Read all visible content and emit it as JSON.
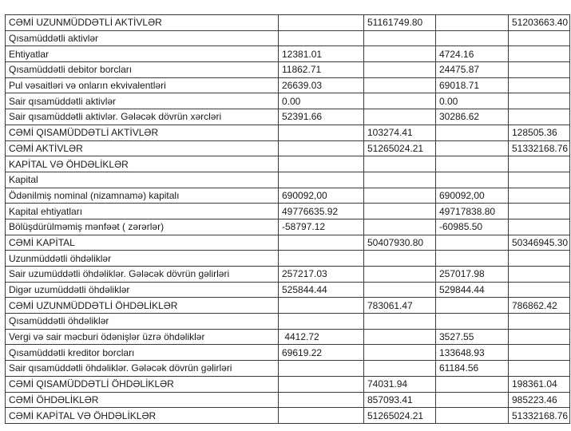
{
  "rows": [
    [
      "CƏMİ UZUNMÜDDƏTLİ AKTİVLƏR",
      "",
      "51161749.80",
      "",
      "51203663.40"
    ],
    [
      "Qısamüddətli aktivlər",
      "",
      "",
      "",
      ""
    ],
    [
      "Ehtiyatlar",
      "12381.01",
      "",
      "4724.16",
      ""
    ],
    [
      "Qısamüddətli debitor borcları",
      "11862.71",
      "",
      "24475.87",
      ""
    ],
    [
      "Pul vəsaitləri və onların ekvivalentləri",
      "26639.03",
      "",
      "69018.71",
      ""
    ],
    [
      "Sair qısamüddətli aktivlər",
      "0.00",
      "",
      "0.00",
      ""
    ],
    [
      "Sair qısamüddətli aktivlər. Gələcək dövrün xərcləri",
      "52391.66",
      "",
      "30286.62",
      ""
    ],
    [
      "CƏMİ QISAMÜDDƏTLİ AKTİVLƏR",
      "",
      "103274.41",
      "",
      "128505.36"
    ],
    [
      "CƏMİ AKTİVLƏR",
      "",
      "51265024.21",
      "",
      "51332168.76"
    ],
    [
      "KAPİTAL VƏ ÖHDƏLİKLƏR",
      "",
      "",
      "",
      ""
    ],
    [
      "Kapital",
      "",
      "",
      "",
      ""
    ],
    [
      "Ödənilmiş nominal (nizamnamə) kapitalı",
      "690092,00",
      "",
      "690092,00",
      ""
    ],
    [
      "Kapital ehtiyatları",
      "49776635.92",
      "",
      "49717838.80",
      ""
    ],
    [
      "Bölüşdürülməmiş mənfəət ( zərərlər)",
      "-58797.12",
      "",
      "-60985.50",
      ""
    ],
    [
      "CƏMİ KAPİTAL",
      "",
      "50407930.80",
      "",
      "50346945.30"
    ],
    [
      "Uzunmüddətli öhdəliklər",
      "",
      "",
      "",
      ""
    ],
    [
      "Sair uzumüddətli öhdəliklər. Gələcək dövrün gəlirləri",
      "257217.03",
      "",
      "257017.98",
      ""
    ],
    [
      "Digər uzumüddətli öhdəliklər",
      "525844.44",
      "",
      "529844.44",
      ""
    ],
    [
      "CƏMİ UZUNMÜDDƏTLİ ÖHDƏLİKLƏR",
      "",
      "783061.47",
      "",
      "786862.42"
    ],
    [
      "Qısamüddətli öhdəliklər",
      "",
      "",
      "",
      ""
    ],
    [
      "Vergi və sair məcburi ödənişlər üzrə öhdəliklər",
      " 4412.72",
      "",
      "3527.55",
      ""
    ],
    [
      "Qısamüddətli kreditor borcları",
      "69619.22",
      "",
      "133648.93",
      ""
    ],
    [
      "Sair qısamüddətli öhdəliklər. Gələcək dövrün gəlirləri",
      "",
      "",
      "61184.56",
      ""
    ],
    [
      "CƏMİ QISAMÜDDƏTLİ ÖHDƏLİKLƏR",
      "",
      "74031.94",
      "",
      "198361.04"
    ],
    [
      "CƏMİ ÖHDƏLİKLƏR",
      "",
      "857093.41",
      "",
      "985223.46"
    ],
    [
      "CƏMİ KAPİTAL VƏ ÖHDƏLİKLƏR",
      "",
      "51265024.21",
      "",
      "51332168.76"
    ]
  ]
}
